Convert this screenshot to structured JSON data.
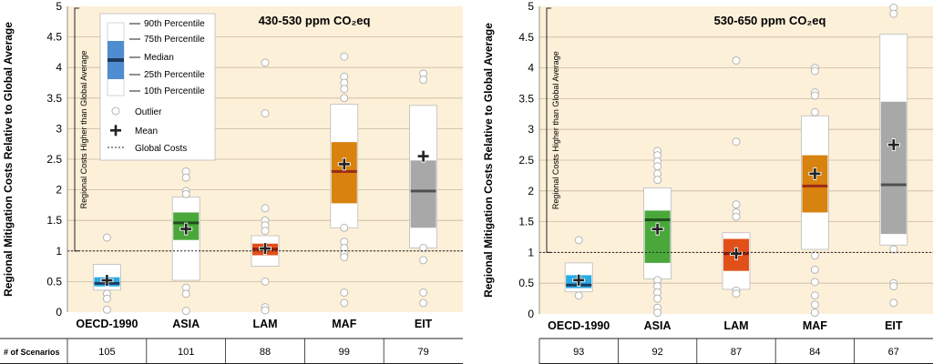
{
  "chart_data": [
    {
      "type": "box",
      "title": "430-530 ppm CO₂eq",
      "ylabel": "Regional Mitigation Costs Relative to Global Average",
      "ylim": [
        0,
        5
      ],
      "yticks": [
        "0",
        "0.5",
        "1",
        "1.5",
        "2",
        "2.5",
        "3",
        "3.5",
        "4",
        "4.5",
        "5"
      ],
      "global_cost_line": 1,
      "bracket_label": "Regional Costs Higher than Global Average",
      "count_label": "# of Scenarios",
      "categories": [
        "OECD-1990",
        "ASIA",
        "LAM",
        "MAF",
        "EIT"
      ],
      "scenario_counts": [
        "105",
        "101",
        "88",
        "99",
        "79"
      ],
      "boxes": [
        {
          "name": "OECD-1990",
          "p10": 0.36,
          "p25": 0.42,
          "median": 0.47,
          "p75": 0.57,
          "p90": 0.78,
          "mean": 0.52,
          "color": "#29abe2",
          "medianColor": "#1f3a5f",
          "outliers": [
            1.22,
            0.3,
            0.22,
            0.04
          ]
        },
        {
          "name": "ASIA",
          "p10": 0.52,
          "p25": 1.18,
          "median": 1.46,
          "p75": 1.63,
          "p90": 1.88,
          "mean": 1.36,
          "color": "#4aa83b",
          "medianColor": "#1f4f1a",
          "outliers": [
            2.3,
            2.2,
            1.98,
            1.93,
            0.4,
            0.3,
            0.02
          ]
        },
        {
          "name": "LAM",
          "p10": 0.75,
          "p25": 0.93,
          "median": 1.03,
          "p75": 1.12,
          "p90": 1.25,
          "mean": 1.04,
          "color": "#e2501a",
          "medianColor": "#8a1f0a",
          "outliers": [
            4.08,
            3.25,
            1.7,
            1.5,
            1.42,
            1.33,
            0.5,
            0.08,
            0.03
          ]
        },
        {
          "name": "MAF",
          "p10": 1.38,
          "p25": 1.78,
          "median": 2.3,
          "p75": 2.78,
          "p90": 3.4,
          "mean": 2.42,
          "color": "#d8820f",
          "medianColor": "#9c2a16",
          "outliers": [
            4.18,
            3.85,
            3.75,
            3.65,
            3.5,
            1.38,
            1.15,
            1.05,
            0.95,
            0.9,
            0.32,
            0.15
          ]
        },
        {
          "name": "EIT",
          "p10": 1.05,
          "p25": 1.38,
          "median": 1.98,
          "p75": 2.48,
          "p90": 3.38,
          "mean": 2.55,
          "color": "#a8a8a8",
          "medianColor": "#505050",
          "outliers": [
            3.9,
            3.8,
            1.05,
            0.85,
            0.32,
            0.15
          ]
        }
      ],
      "legend": {
        "p90": "90th Percentile",
        "p75": "75th Percentile",
        "median": "Median",
        "p25": "25th Percentile",
        "p10": "10th Percentile",
        "outlier": "Outlier",
        "mean": "Mean",
        "global": "Global Costs"
      }
    },
    {
      "type": "box",
      "title": "530-650 ppm CO₂eq",
      "ylabel": "Regional Mitigation Costs Relative to Global Average",
      "ylim": [
        0,
        5
      ],
      "yticks": [
        "0",
        "0.5",
        "1",
        "1.5",
        "2",
        "2.5",
        "3",
        "3.5",
        "4",
        "4.5",
        "5"
      ],
      "global_cost_line": 1,
      "bracket_label": "Regional Costs Higher than Global Average",
      "count_label": "",
      "categories": [
        "OECD-1990",
        "ASIA",
        "LAM",
        "MAF",
        "EIT"
      ],
      "scenario_counts": [
        "93",
        "92",
        "87",
        "84",
        "67"
      ],
      "boxes": [
        {
          "name": "OECD-1990",
          "p10": 0.36,
          "p25": 0.42,
          "median": 0.47,
          "p75": 0.63,
          "p90": 0.83,
          "mean": 0.55,
          "color": "#29abe2",
          "medianColor": "#1f3a5f",
          "outliers": [
            1.2,
            0.3
          ]
        },
        {
          "name": "ASIA",
          "p10": 0.57,
          "p25": 0.83,
          "median": 1.53,
          "p75": 1.68,
          "p90": 2.05,
          "mean": 1.38,
          "color": "#4aa83b",
          "medianColor": "#1f4f1a",
          "outliers": [
            2.65,
            2.58,
            2.48,
            2.4,
            2.28,
            2.18,
            0.55,
            0.45,
            0.35,
            0.25,
            0.1,
            0.02
          ]
        },
        {
          "name": "LAM",
          "p10": 0.4,
          "p25": 0.7,
          "median": 0.98,
          "p75": 1.22,
          "p90": 1.32,
          "mean": 0.98,
          "color": "#e2501a",
          "medianColor": "#8a1f0a",
          "outliers": [
            4.12,
            2.8,
            1.78,
            1.65,
            1.58,
            0.38,
            0.33
          ]
        },
        {
          "name": "MAF",
          "p10": 1.05,
          "p25": 1.65,
          "median": 2.08,
          "p75": 2.58,
          "p90": 3.22,
          "mean": 2.28,
          "color": "#d8820f",
          "medianColor": "#9c2a16",
          "outliers": [
            4.0,
            3.95,
            3.6,
            3.55,
            3.28,
            0.95,
            0.72,
            0.52,
            0.3,
            0.15,
            0.02
          ]
        },
        {
          "name": "EIT",
          "p10": 1.12,
          "p25": 1.3,
          "median": 2.1,
          "p75": 3.45,
          "p90": 4.55,
          "mean": 2.75,
          "color": "#a8a8a8",
          "medianColor": "#505050",
          "outliers": [
            4.98,
            4.88,
            1.05,
            0.5,
            0.45,
            0.18
          ]
        }
      ]
    }
  ]
}
